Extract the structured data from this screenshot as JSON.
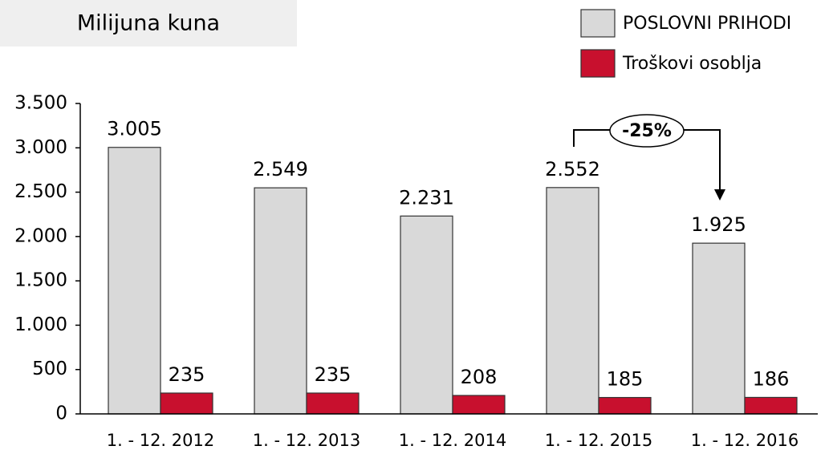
{
  "chart_data": {
    "type": "bar",
    "title": "Milijuna kuna",
    "categories": [
      "1. - 12.  2012",
      "1. - 12.  2013",
      "1. - 12.  2014",
      "1. - 12.  2015",
      "1. - 12.  2016"
    ],
    "series": [
      {
        "name": "POSLOVNI PRIHODI",
        "color": "#d9d9d9",
        "values": [
          3005,
          2549,
          2231,
          2552,
          1925
        ],
        "value_labels": [
          "3.005",
          "2.549",
          "2.231",
          "2.552",
          "1.925"
        ]
      },
      {
        "name": "Troškovi osoblja",
        "color": "#c8102e",
        "values": [
          235,
          235,
          208,
          185,
          186
        ]
      }
    ],
    "ylim": [
      0,
      3500
    ],
    "yticks": [
      0,
      500,
      {
        "value": 1000,
        "label": "1.000"
      },
      {
        "value": 1500,
        "label": "1.500"
      },
      {
        "value": 2000,
        "label": "2.000"
      },
      {
        "value": 2500,
        "label": "2.500"
      },
      {
        "value": 3000,
        "label": "3.000"
      },
      {
        "value": 3500,
        "label": "3.500"
      }
    ],
    "annotation": "-25%",
    "grid": false
  }
}
